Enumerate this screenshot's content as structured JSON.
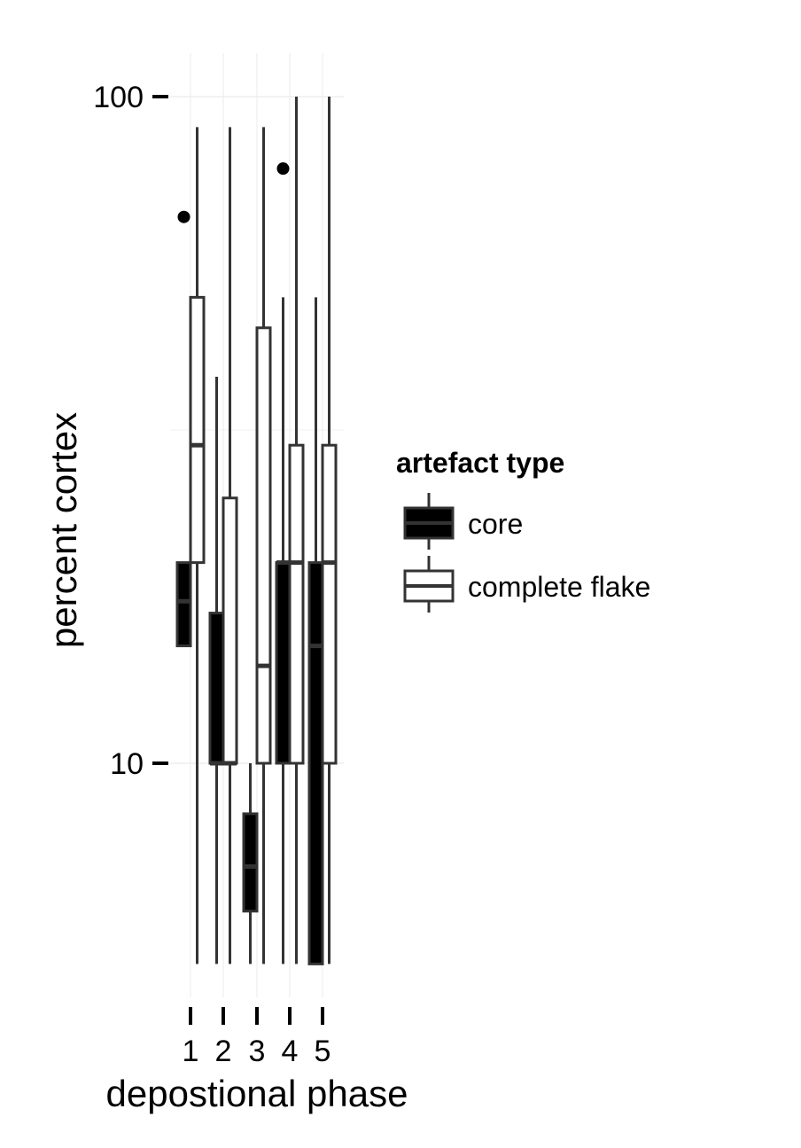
{
  "chart_data": {
    "type": "boxplot",
    "xlabel": "depostional phase",
    "ylabel": "percent cortex",
    "y_scale": "log10",
    "ylim": [
      4,
      140
    ],
    "y_ticks": [
      {
        "value": 10,
        "label": "10"
      },
      {
        "value": 100,
        "label": "100"
      }
    ],
    "categories": [
      "1",
      "2",
      "3",
      "4",
      "5"
    ],
    "grid": true,
    "legend": {
      "title": "artefact type",
      "placement": "right",
      "entries": [
        "core",
        "complete flake"
      ]
    },
    "series": [
      {
        "name": "core",
        "fill": "#000000",
        "stroke": "#333333",
        "boxes": [
          {
            "category": "1",
            "q1": 15,
            "median": 17.5,
            "q3": 20,
            "whisker_low": 15,
            "whisker_high": 20,
            "outliers": [
              66
            ]
          },
          {
            "category": "2",
            "q1": 10,
            "median": 10,
            "q3": 16.8,
            "whisker_low": 5,
            "whisker_high": 38,
            "outliers": []
          },
          {
            "category": "3",
            "q1": 6,
            "median": 7,
            "q3": 8.4,
            "whisker_low": 5,
            "whisker_high": 10,
            "outliers": []
          },
          {
            "category": "4",
            "q1": 10,
            "median": 20,
            "q3": 20,
            "whisker_low": 5,
            "whisker_high": 50,
            "outliers": [
              78
            ]
          },
          {
            "category": "5",
            "q1": 5,
            "median": 15,
            "q3": 20,
            "whisker_low": 5,
            "whisker_high": 50,
            "outliers": []
          }
        ]
      },
      {
        "name": "complete flake",
        "fill": "#ffffff",
        "stroke": "#333333",
        "boxes": [
          {
            "category": "1",
            "q1": 20,
            "median": 30,
            "q3": 50,
            "whisker_low": 5,
            "whisker_high": 90,
            "outliers": []
          },
          {
            "category": "2",
            "q1": 10,
            "median": 10,
            "q3": 25,
            "whisker_low": 5,
            "whisker_high": 90,
            "outliers": []
          },
          {
            "category": "3",
            "q1": 10,
            "median": 14,
            "q3": 45,
            "whisker_low": 5,
            "whisker_high": 90,
            "outliers": []
          },
          {
            "category": "4",
            "q1": 10,
            "median": 20,
            "q3": 30,
            "whisker_low": 5,
            "whisker_high": 100,
            "outliers": []
          },
          {
            "category": "5",
            "q1": 10,
            "median": 20,
            "q3": 30,
            "whisker_low": 5,
            "whisker_high": 100,
            "outliers": []
          }
        ]
      }
    ]
  }
}
